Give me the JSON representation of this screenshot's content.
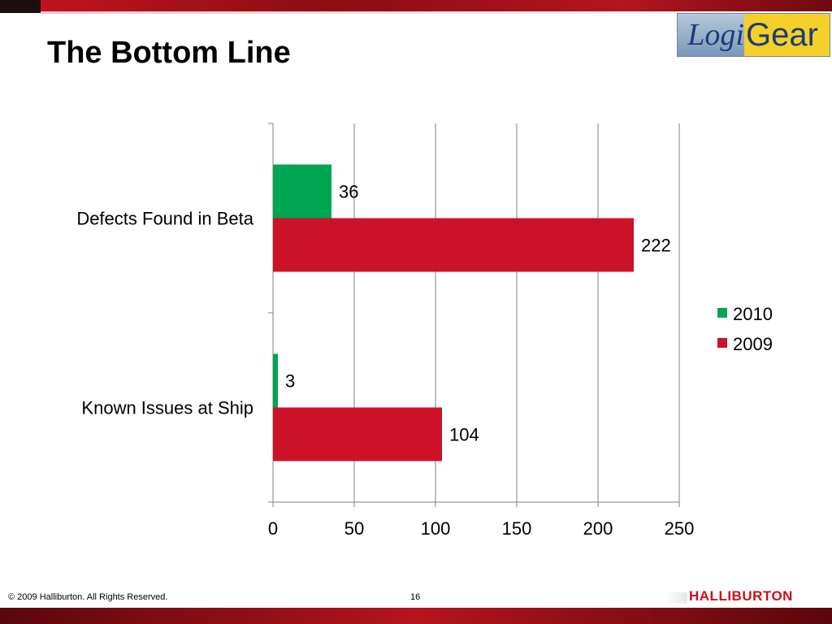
{
  "slide": {
    "title": "The Bottom Line",
    "page_number": "16",
    "copyright": "© 2009 Halliburton. All Rights Reserved.",
    "brand": "HALLIBURTON",
    "logo": {
      "left": "Logi",
      "right": "Gear"
    }
  },
  "colors": {
    "series_2010": "#00a651",
    "series_2009": "#cc1229",
    "gridline": "#808080",
    "header_red": "#b4141e"
  },
  "chart_data": {
    "type": "bar",
    "orientation": "horizontal",
    "categories": [
      "Defects Found in Beta",
      "Known Issues at Ship"
    ],
    "series": [
      {
        "name": "2010",
        "values": [
          36,
          3
        ]
      },
      {
        "name": "2009",
        "values": [
          222,
          104
        ]
      }
    ],
    "data_labels": [
      [
        "36",
        "3"
      ],
      [
        "222",
        "104"
      ]
    ],
    "xlim": [
      0,
      250
    ],
    "x_ticks": [
      0,
      50,
      100,
      150,
      200,
      250
    ],
    "gridlines": true,
    "legend": "right"
  }
}
